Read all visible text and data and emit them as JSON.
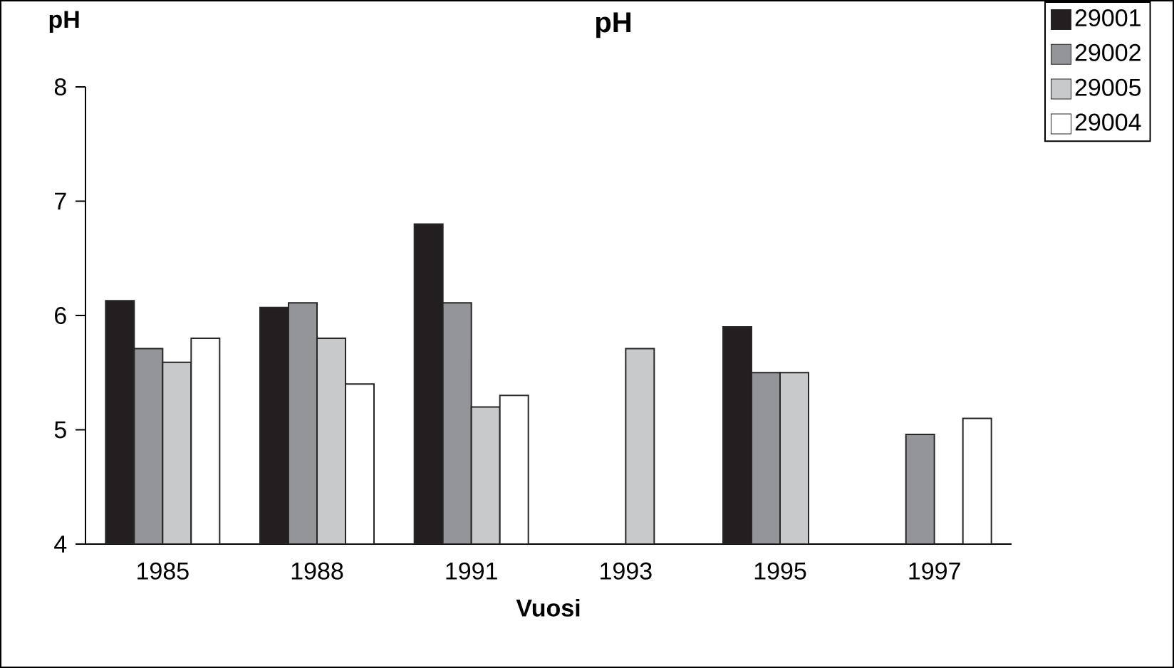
{
  "chart_data": {
    "type": "bar",
    "title": "pH",
    "xlabel": "Vuosi",
    "ylabel": "pH",
    "categories": [
      "1985",
      "1988",
      "1991",
      "1993",
      "1995",
      "1997"
    ],
    "series": [
      {
        "name": "29001",
        "color": "#231f20",
        "values": [
          6.13,
          6.07,
          6.8,
          null,
          5.9,
          null
        ]
      },
      {
        "name": "29002",
        "color": "#939598",
        "values": [
          5.71,
          6.11,
          6.11,
          null,
          5.5,
          4.96
        ]
      },
      {
        "name": "29005",
        "color": "#c8c9cb",
        "values": [
          5.59,
          5.8,
          5.2,
          5.71,
          5.5,
          null
        ]
      },
      {
        "name": "29004",
        "color": "#ffffff",
        "values": [
          5.8,
          5.4,
          5.3,
          null,
          null,
          5.1
        ]
      }
    ],
    "ylim": [
      4,
      8
    ],
    "yticks": [
      4,
      5,
      6,
      7,
      8
    ],
    "legend": "top right"
  }
}
